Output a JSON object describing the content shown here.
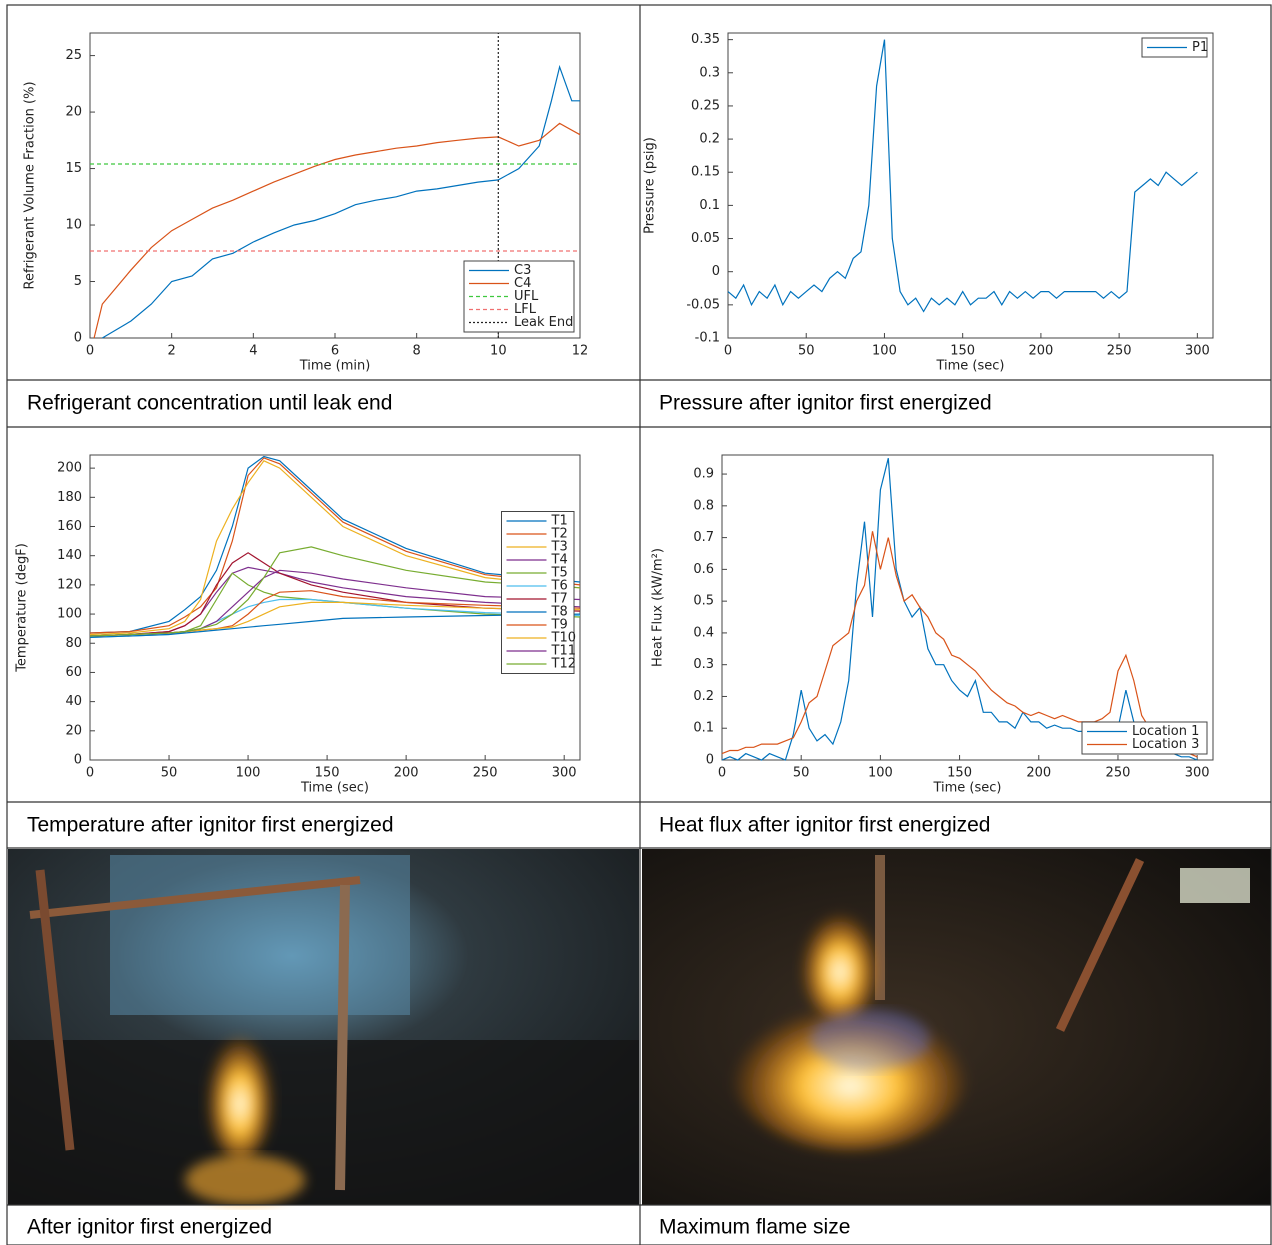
{
  "chart_data": [
    {
      "type": "line",
      "xlabel": "Time (min)",
      "ylabel": "Refrigerant Volume Fraction (%)",
      "xlim": [
        0,
        12
      ],
      "xticks": [
        0,
        2,
        4,
        6,
        8,
        10,
        12
      ],
      "ylim": [
        0,
        27
      ],
      "yticks": [
        0,
        5,
        10,
        15,
        20,
        25
      ],
      "legend": "lower right",
      "series": [
        {
          "name": "C3",
          "color": "#0072bd",
          "style": "solid",
          "x": [
            0.3,
            1,
            1.5,
            2,
            2.5,
            3,
            3.5,
            4,
            4.5,
            5,
            5.5,
            6,
            6.5,
            7,
            7.5,
            8,
            8.5,
            9,
            9.5,
            10,
            10.5,
            11,
            11.3,
            11.5,
            11.8,
            12
          ],
          "values": [
            0,
            1.5,
            3,
            5,
            5.5,
            7,
            7.5,
            8.5,
            9.3,
            10,
            10.4,
            11,
            11.8,
            12.2,
            12.5,
            13,
            13.2,
            13.5,
            13.8,
            14,
            15,
            17,
            21,
            24,
            21,
            21
          ]
        },
        {
          "name": "C4",
          "color": "#d95319",
          "style": "solid",
          "x": [
            0.1,
            0.3,
            1,
            1.5,
            2,
            2.5,
            3,
            3.5,
            4,
            4.5,
            5,
            5.5,
            6,
            6.5,
            7,
            7.5,
            8,
            8.5,
            9,
            9.5,
            10,
            10.5,
            11,
            11.5,
            12
          ],
          "values": [
            0,
            3,
            6,
            8,
            9.5,
            10.5,
            11.5,
            12.2,
            13,
            13.8,
            14.5,
            15.2,
            15.8,
            16.2,
            16.5,
            16.8,
            17,
            17.3,
            17.5,
            17.7,
            17.8,
            17,
            17.5,
            19,
            18
          ]
        },
        {
          "name": "UFL",
          "color": "#3ec83e",
          "style": "dashed",
          "x": [
            0,
            12
          ],
          "values": [
            15.4,
            15.4
          ]
        },
        {
          "name": "LFL",
          "color": "#f07070",
          "style": "dashed",
          "x": [
            0,
            12
          ],
          "values": [
            7.7,
            7.7
          ]
        },
        {
          "name": "Leak End",
          "color": "#222222",
          "style": "dotted",
          "x": [
            10,
            10
          ],
          "values": [
            0,
            27
          ]
        }
      ]
    },
    {
      "type": "line",
      "xlabel": "Time (sec)",
      "ylabel": "Pressure (psig)",
      "xlim": [
        0,
        310
      ],
      "xticks": [
        0,
        50,
        100,
        150,
        200,
        250,
        300
      ],
      "ylim": [
        -0.1,
        0.36
      ],
      "yticks": [
        -0.1,
        -0.05,
        0,
        0.05,
        0.1,
        0.15,
        0.2,
        0.25,
        0.3,
        0.35
      ],
      "legend": "upper right",
      "x": [
        0,
        5,
        10,
        15,
        20,
        25,
        30,
        35,
        40,
        45,
        50,
        55,
        60,
        65,
        70,
        75,
        80,
        85,
        90,
        95,
        100,
        105,
        110,
        115,
        120,
        125,
        130,
        135,
        140,
        145,
        150,
        155,
        160,
        165,
        170,
        175,
        180,
        185,
        190,
        195,
        200,
        205,
        210,
        215,
        220,
        225,
        230,
        235,
        240,
        245,
        250,
        255,
        260,
        265,
        270,
        275,
        280,
        285,
        290,
        295,
        300
      ],
      "series": [
        {
          "name": "P1",
          "color": "#0072bd",
          "style": "solid",
          "values": [
            -0.03,
            -0.04,
            -0.02,
            -0.05,
            -0.03,
            -0.04,
            -0.02,
            -0.05,
            -0.03,
            -0.04,
            -0.03,
            -0.02,
            -0.03,
            -0.01,
            0,
            -0.01,
            0.02,
            0.03,
            0.1,
            0.28,
            0.35,
            0.05,
            -0.03,
            -0.05,
            -0.04,
            -0.06,
            -0.04,
            -0.05,
            -0.04,
            -0.05,
            -0.03,
            -0.05,
            -0.04,
            -0.04,
            -0.03,
            -0.05,
            -0.03,
            -0.04,
            -0.03,
            -0.04,
            -0.03,
            -0.03,
            -0.04,
            -0.03,
            -0.03,
            -0.03,
            -0.03,
            -0.03,
            -0.04,
            -0.03,
            -0.04,
            -0.03,
            0.12,
            0.13,
            0.14,
            0.13,
            0.15,
            0.14,
            0.13,
            0.14,
            0.15
          ]
        }
      ]
    },
    {
      "type": "line",
      "xlabel": "Time (sec)",
      "ylabel": "Temperature (degF)",
      "xlim": [
        0,
        310
      ],
      "xticks": [
        0,
        50,
        100,
        150,
        200,
        250,
        300
      ],
      "ylim": [
        0,
        209
      ],
      "yticks": [
        0,
        20,
        40,
        60,
        80,
        100,
        120,
        140,
        160,
        180,
        200
      ],
      "legend": "right",
      "x": [
        0,
        25,
        50,
        60,
        70,
        80,
        90,
        100,
        110,
        120,
        140,
        160,
        200,
        250,
        310
      ],
      "series": [
        {
          "name": "T1",
          "color": "#0072bd",
          "style": "solid",
          "values": [
            87,
            88,
            95,
            103,
            112,
            130,
            160,
            200,
            208,
            205,
            185,
            165,
            145,
            128,
            122
          ]
        },
        {
          "name": "T2",
          "color": "#d95319",
          "style": "solid",
          "values": [
            87,
            88,
            92,
            98,
            105,
            118,
            150,
            195,
            207,
            203,
            183,
            163,
            143,
            127,
            120
          ]
        },
        {
          "name": "T3",
          "color": "#edb120",
          "style": "solid",
          "values": [
            86,
            87,
            90,
            95,
            110,
            150,
            172,
            190,
            205,
            200,
            180,
            160,
            140,
            125,
            118
          ]
        },
        {
          "name": "T4",
          "color": "#7e2f8e",
          "style": "solid",
          "values": [
            85,
            86,
            88,
            92,
            100,
            115,
            128,
            132,
            130,
            128,
            122,
            118,
            112,
            108,
            105
          ]
        },
        {
          "name": "T5",
          "color": "#77ac30",
          "style": "solid",
          "values": [
            85,
            86,
            87,
            88,
            92,
            110,
            128,
            120,
            115,
            112,
            110,
            108,
            104,
            100,
            98
          ]
        },
        {
          "name": "T6",
          "color": "#4dbeee",
          "style": "solid",
          "values": [
            84,
            85,
            86,
            88,
            90,
            95,
            100,
            105,
            108,
            110,
            110,
            108,
            104,
            101,
            99
          ]
        },
        {
          "name": "T7",
          "color": "#a2142f",
          "style": "solid",
          "values": [
            85,
            86,
            88,
            92,
            100,
            120,
            135,
            142,
            135,
            128,
            120,
            115,
            108,
            104,
            102
          ]
        },
        {
          "name": "T8",
          "color": "#0072bd",
          "style": "solid",
          "values": [
            84,
            85,
            86,
            87,
            88,
            89,
            90,
            91,
            92,
            93,
            95,
            97,
            98,
            99,
            100
          ]
        },
        {
          "name": "T9",
          "color": "#d95319",
          "style": "solid",
          "values": [
            85,
            86,
            87,
            88,
            89,
            90,
            92,
            100,
            110,
            115,
            116,
            112,
            108,
            106,
            104
          ]
        },
        {
          "name": "T10",
          "color": "#edb120",
          "style": "solid",
          "values": [
            85,
            86,
            87,
            88,
            89,
            90,
            91,
            95,
            100,
            105,
            108,
            108,
            106,
            104,
            103
          ]
        },
        {
          "name": "T11",
          "color": "#7e2f8e",
          "style": "solid",
          "values": [
            85,
            86,
            87,
            88,
            90,
            95,
            105,
            115,
            125,
            130,
            128,
            124,
            118,
            112,
            110
          ]
        },
        {
          "name": "T12",
          "color": "#77ac30",
          "style": "solid",
          "values": [
            85,
            86,
            87,
            88,
            90,
            93,
            100,
            110,
            125,
            142,
            146,
            140,
            130,
            122,
            118
          ]
        }
      ]
    },
    {
      "type": "line",
      "xlabel": "Time (sec)",
      "ylabel": "Heat Flux (kW/m²)",
      "xlim": [
        0,
        310
      ],
      "xticks": [
        0,
        50,
        100,
        150,
        200,
        250,
        300
      ],
      "ylim": [
        0,
        0.96
      ],
      "yticks": [
        0,
        0.1,
        0.2,
        0.3,
        0.4,
        0.5,
        0.6,
        0.7,
        0.8,
        0.9
      ],
      "legend": "lower right",
      "x": [
        0,
        5,
        10,
        15,
        20,
        25,
        30,
        35,
        40,
        45,
        50,
        55,
        60,
        65,
        70,
        75,
        80,
        85,
        90,
        95,
        100,
        105,
        110,
        115,
        120,
        125,
        130,
        135,
        140,
        145,
        150,
        155,
        160,
        165,
        170,
        175,
        180,
        185,
        190,
        195,
        200,
        205,
        210,
        215,
        220,
        225,
        230,
        235,
        240,
        245,
        250,
        255,
        260,
        265,
        270,
        275,
        280,
        285,
        290,
        295,
        300
      ],
      "series": [
        {
          "name": "Location 1",
          "color": "#0072bd",
          "style": "solid",
          "values": [
            0,
            0.01,
            0,
            0.02,
            0.01,
            0,
            0.02,
            0.01,
            0,
            0.08,
            0.22,
            0.1,
            0.06,
            0.08,
            0.05,
            0.12,
            0.25,
            0.55,
            0.75,
            0.45,
            0.85,
            0.95,
            0.6,
            0.5,
            0.45,
            0.48,
            0.35,
            0.3,
            0.3,
            0.25,
            0.22,
            0.2,
            0.25,
            0.15,
            0.15,
            0.12,
            0.12,
            0.1,
            0.15,
            0.12,
            0.12,
            0.1,
            0.11,
            0.1,
            0.1,
            0.09,
            0.09,
            0.09,
            0.07,
            0.05,
            0.1,
            0.22,
            0.12,
            0.05,
            0.08,
            0.06,
            0.04,
            0.02,
            0.01,
            0.01,
            0
          ]
        },
        {
          "name": "Location 3",
          "color": "#d95319",
          "style": "solid",
          "values": [
            0.02,
            0.03,
            0.03,
            0.04,
            0.04,
            0.05,
            0.05,
            0.05,
            0.06,
            0.07,
            0.12,
            0.18,
            0.2,
            0.28,
            0.36,
            0.38,
            0.4,
            0.5,
            0.55,
            0.72,
            0.6,
            0.7,
            0.58,
            0.5,
            0.52,
            0.48,
            0.45,
            0.4,
            0.38,
            0.33,
            0.32,
            0.3,
            0.28,
            0.25,
            0.22,
            0.2,
            0.18,
            0.17,
            0.15,
            0.14,
            0.15,
            0.14,
            0.13,
            0.14,
            0.13,
            0.12,
            0.12,
            0.12,
            0.13,
            0.15,
            0.28,
            0.33,
            0.25,
            0.14,
            0.1,
            0.08,
            0.06,
            0.05,
            0.03,
            0.02,
            0.01
          ]
        }
      ]
    }
  ],
  "captions": [
    "Refrigerant concentration until leak end",
    "Pressure after ignitor first energized",
    "Temperature after ignitor first energized",
    "Heat flux after ignitor first energized",
    "After ignitor first energized",
    "Maximum flame size"
  ]
}
